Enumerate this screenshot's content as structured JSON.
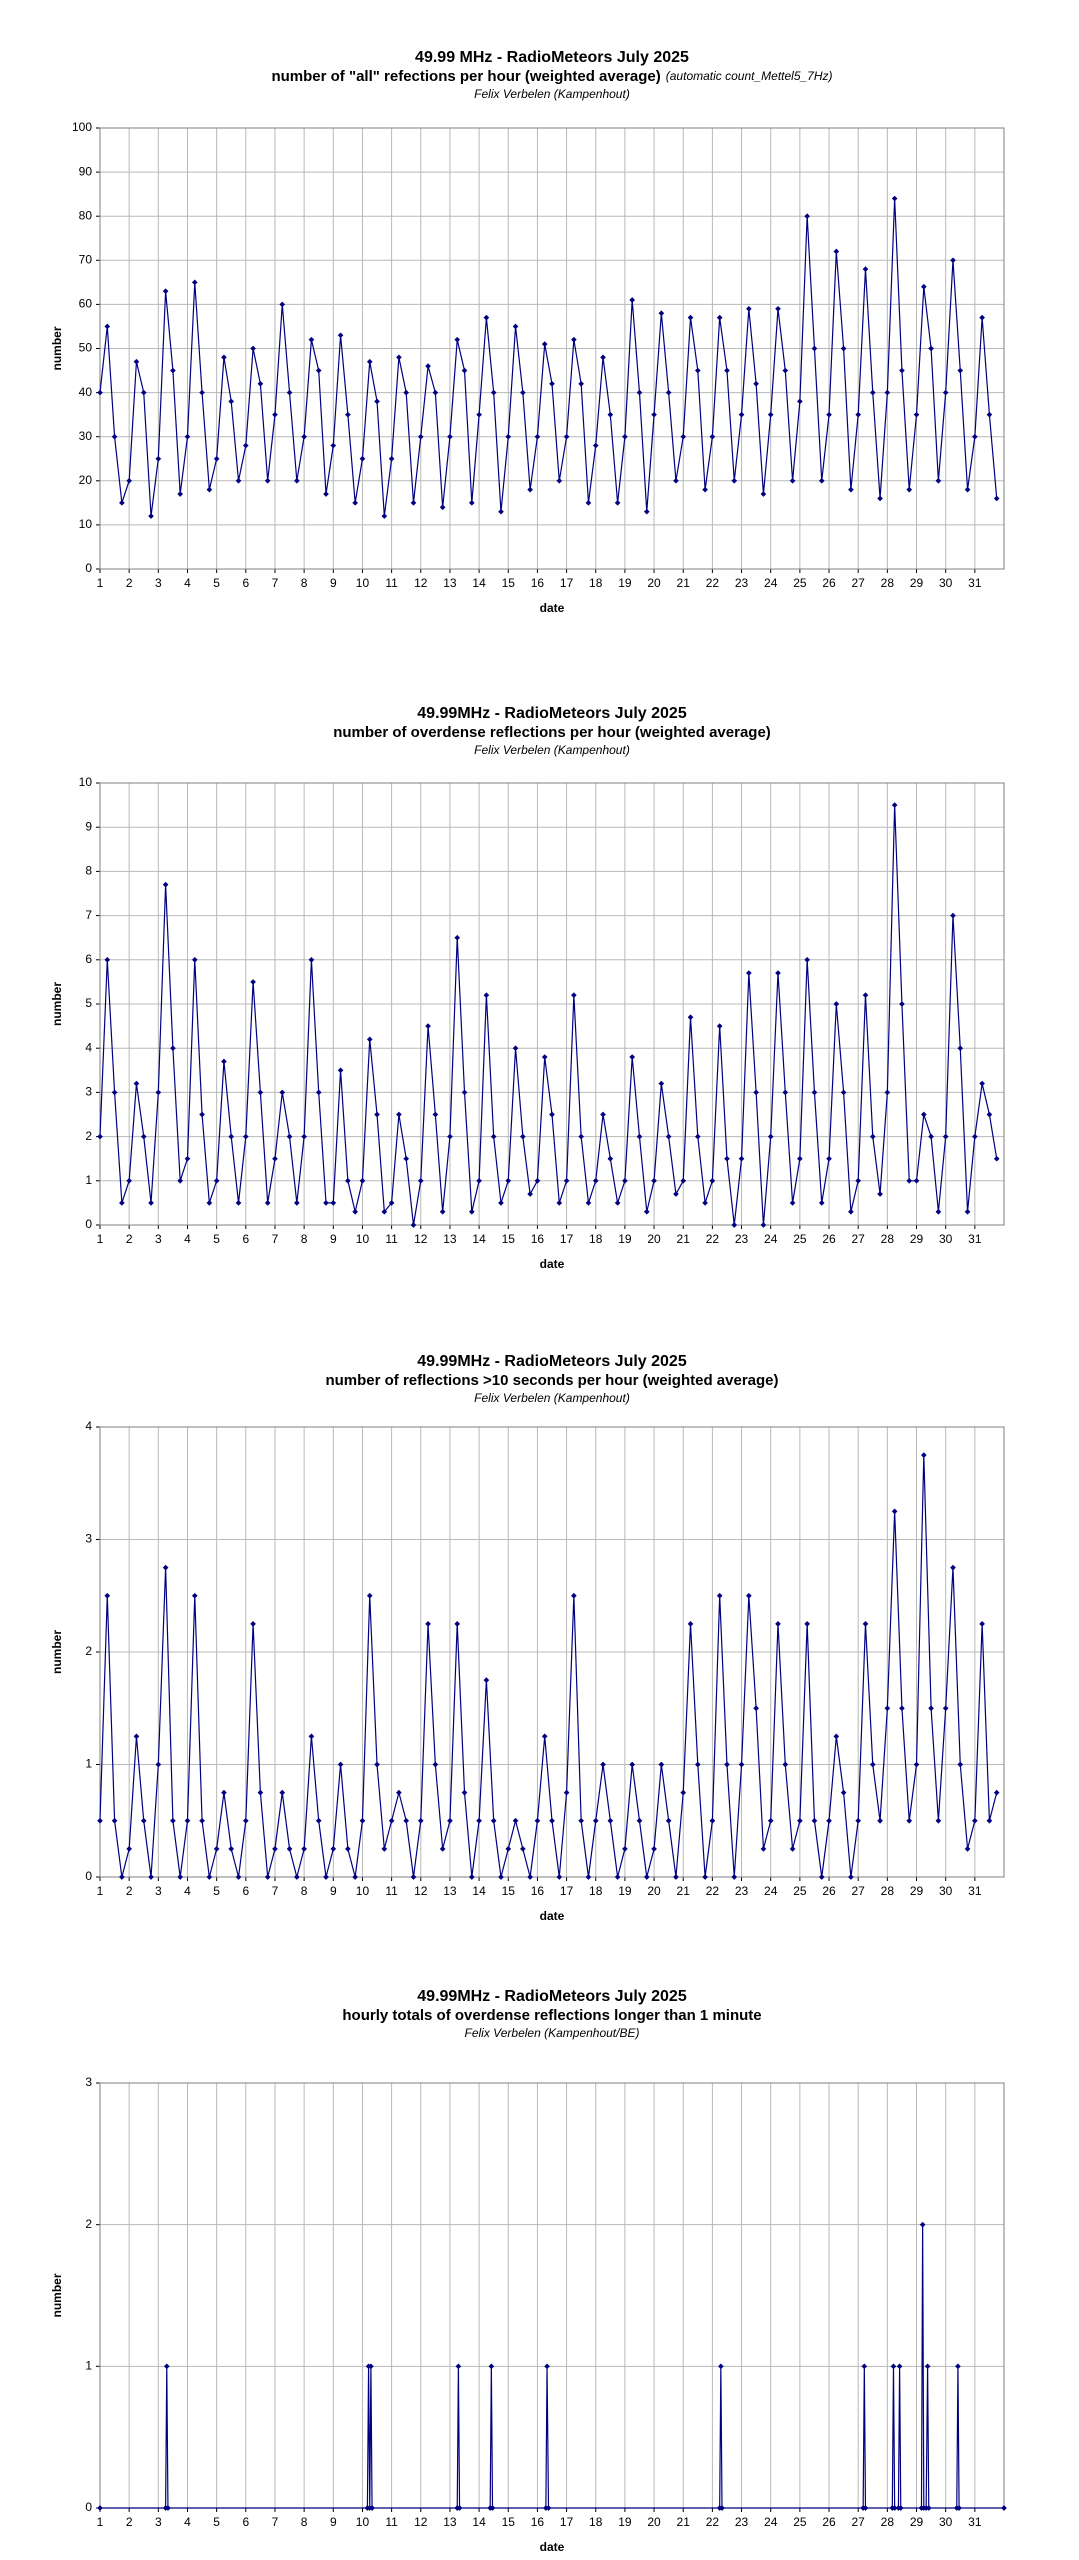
{
  "chart_data": [
    {
      "type": "line",
      "title": "49.99 MHz - RadioMeteors July 2025",
      "subtitle": "number of \"all\" refections per hour (weighted average)",
      "subtitle_note": "(automatic count_Mettel5_7Hz)",
      "credit": "Felix Verbelen (Kampenhout)",
      "x_label": "date",
      "y_label": "number",
      "xlim": [
        1,
        32
      ],
      "xticks": [
        1,
        2,
        3,
        4,
        5,
        6,
        7,
        8,
        9,
        10,
        11,
        12,
        13,
        14,
        15,
        16,
        17,
        18,
        19,
        20,
        21,
        22,
        23,
        24,
        25,
        26,
        27,
        28,
        29,
        30,
        31
      ],
      "ylim": [
        0,
        100
      ],
      "yticks": [
        0,
        10,
        20,
        30,
        40,
        50,
        60,
        70,
        80,
        90,
        100
      ],
      "grid": true,
      "x": [
        1,
        1.25,
        1.5,
        1.75,
        2,
        2.25,
        2.5,
        2.75,
        3,
        3.25,
        3.5,
        3.75,
        4,
        4.25,
        4.5,
        4.75,
        5,
        5.25,
        5.5,
        5.75,
        6,
        6.25,
        6.5,
        6.75,
        7,
        7.25,
        7.5,
        7.75,
        8,
        8.25,
        8.5,
        8.75,
        9,
        9.25,
        9.5,
        9.75,
        10,
        10.25,
        10.5,
        10.75,
        11,
        11.25,
        11.5,
        11.75,
        12,
        12.25,
        12.5,
        12.75,
        13,
        13.25,
        13.5,
        13.75,
        14,
        14.25,
        14.5,
        14.75,
        15,
        15.25,
        15.5,
        15.75,
        16,
        16.25,
        16.5,
        16.75,
        17,
        17.25,
        17.5,
        17.75,
        18,
        18.25,
        18.5,
        18.75,
        19,
        19.25,
        19.5,
        19.75,
        20,
        20.25,
        20.5,
        20.75,
        21,
        21.25,
        21.5,
        21.75,
        22,
        22.25,
        22.5,
        22.75,
        23,
        23.25,
        23.5,
        23.75,
        24,
        24.25,
        24.5,
        24.75,
        25,
        25.25,
        25.5,
        25.75,
        26,
        26.25,
        26.5,
        26.75,
        27,
        27.25,
        27.5,
        27.75,
        28,
        28.25,
        28.5,
        28.75,
        29,
        29.25,
        29.5,
        29.75,
        30,
        30.25,
        30.5,
        30.75,
        31,
        31.25,
        31.5,
        31.75
      ],
      "series": [
        {
          "color": "#000080",
          "values": [
            40,
            55,
            30,
            15,
            20,
            47,
            40,
            12,
            25,
            63,
            45,
            17,
            30,
            65,
            40,
            18,
            25,
            48,
            38,
            20,
            28,
            50,
            42,
            20,
            35,
            60,
            40,
            20,
            30,
            52,
            45,
            17,
            28,
            53,
            35,
            15,
            25,
            47,
            38,
            12,
            25,
            48,
            40,
            15,
            30,
            46,
            40,
            14,
            30,
            52,
            45,
            15,
            35,
            57,
            40,
            13,
            30,
            55,
            40,
            18,
            30,
            51,
            42,
            20,
            30,
            52,
            42,
            15,
            28,
            48,
            35,
            15,
            30,
            61,
            40,
            13,
            35,
            58,
            40,
            20,
            30,
            57,
            45,
            18,
            30,
            57,
            45,
            20,
            35,
            59,
            42,
            17,
            35,
            59,
            45,
            20,
            38,
            80,
            50,
            20,
            35,
            72,
            50,
            18,
            35,
            68,
            40,
            16,
            40,
            84,
            45,
            18,
            35,
            64,
            50,
            20,
            40,
            70,
            45,
            18,
            30,
            57,
            35,
            16
          ]
        }
      ]
    },
    {
      "type": "line",
      "title": "49.99MHz - RadioMeteors July 2025",
      "subtitle": "number of overdense reflections per hour (weighted average)",
      "credit": "Felix Verbelen (Kampenhout)",
      "x_label": "date",
      "y_label": "number",
      "xlim": [
        1,
        32
      ],
      "xticks": [
        1,
        2,
        3,
        4,
        5,
        6,
        7,
        8,
        9,
        10,
        11,
        12,
        13,
        14,
        15,
        16,
        17,
        18,
        19,
        20,
        21,
        22,
        23,
        24,
        25,
        26,
        27,
        28,
        29,
        30,
        31
      ],
      "ylim": [
        0,
        10
      ],
      "yticks": [
        0,
        1,
        2,
        3,
        4,
        5,
        6,
        7,
        8,
        9,
        10
      ],
      "grid": true,
      "x": [
        1,
        1.25,
        1.5,
        1.75,
        2,
        2.25,
        2.5,
        2.75,
        3,
        3.25,
        3.5,
        3.75,
        4,
        4.25,
        4.5,
        4.75,
        5,
        5.25,
        5.5,
        5.75,
        6,
        6.25,
        6.5,
        6.75,
        7,
        7.25,
        7.5,
        7.75,
        8,
        8.25,
        8.5,
        8.75,
        9,
        9.25,
        9.5,
        9.75,
        10,
        10.25,
        10.5,
        10.75,
        11,
        11.25,
        11.5,
        11.75,
        12,
        12.25,
        12.5,
        12.75,
        13,
        13.25,
        13.5,
        13.75,
        14,
        14.25,
        14.5,
        14.75,
        15,
        15.25,
        15.5,
        15.75,
        16,
        16.25,
        16.5,
        16.75,
        17,
        17.25,
        17.5,
        17.75,
        18,
        18.25,
        18.5,
        18.75,
        19,
        19.25,
        19.5,
        19.75,
        20,
        20.25,
        20.5,
        20.75,
        21,
        21.25,
        21.5,
        21.75,
        22,
        22.25,
        22.5,
        22.75,
        23,
        23.25,
        23.5,
        23.75,
        24,
        24.25,
        24.5,
        24.75,
        25,
        25.25,
        25.5,
        25.75,
        26,
        26.25,
        26.5,
        26.75,
        27,
        27.25,
        27.5,
        27.75,
        28,
        28.25,
        28.5,
        28.75,
        29,
        29.25,
        29.5,
        29.75,
        30,
        30.25,
        30.5,
        30.75,
        31,
        31.25,
        31.5,
        31.75
      ],
      "series": [
        {
          "color": "#000080",
          "values": [
            2,
            6,
            3,
            0.5,
            1,
            3.2,
            2,
            0.5,
            3,
            7.7,
            4,
            1,
            1.5,
            6,
            2.5,
            0.5,
            1,
            3.7,
            2,
            0.5,
            2,
            5.5,
            3,
            0.5,
            1.5,
            3,
            2,
            0.5,
            2,
            6,
            3,
            0.5,
            0.5,
            3.5,
            1,
            0.3,
            1,
            4.2,
            2.5,
            0.3,
            0.5,
            2.5,
            1.5,
            0,
            1,
            4.5,
            2.5,
            0.3,
            2,
            6.5,
            3,
            0.3,
            1,
            5.2,
            2,
            0.5,
            1,
            4,
            2,
            0.7,
            1,
            3.8,
            2.5,
            0.5,
            1,
            5.2,
            2,
            0.5,
            1,
            2.5,
            1.5,
            0.5,
            1,
            3.8,
            2,
            0.3,
            1,
            3.2,
            2,
            0.7,
            1,
            4.7,
            2,
            0.5,
            1,
            4.5,
            1.5,
            0,
            1.5,
            5.7,
            3,
            0,
            2,
            5.7,
            3,
            0.5,
            1.5,
            6,
            3,
            0.5,
            1.5,
            5,
            3,
            0.3,
            1,
            5.2,
            2,
            0.7,
            3,
            9.5,
            5,
            1,
            1,
            2.5,
            2,
            0.3,
            2,
            7,
            4,
            0.3,
            2,
            3.2,
            2.5,
            1.5
          ]
        }
      ]
    },
    {
      "type": "line",
      "title": "49.99MHz - RadioMeteors July 2025",
      "subtitle": "number of reflections >10 seconds per hour (weighted average)",
      "credit": "Felix Verbelen (Kampenhout)",
      "x_label": "date",
      "y_label": "number",
      "xlim": [
        1,
        32
      ],
      "xticks": [
        1,
        2,
        3,
        4,
        5,
        6,
        7,
        8,
        9,
        10,
        11,
        12,
        13,
        14,
        15,
        16,
        17,
        18,
        19,
        20,
        21,
        22,
        23,
        24,
        25,
        26,
        27,
        28,
        29,
        30,
        31
      ],
      "ylim": [
        0,
        4
      ],
      "yticks": [
        0,
        1,
        2,
        3,
        4
      ],
      "grid": true,
      "x": [
        1,
        1.25,
        1.5,
        1.75,
        2,
        2.25,
        2.5,
        2.75,
        3,
        3.25,
        3.5,
        3.75,
        4,
        4.25,
        4.5,
        4.75,
        5,
        5.25,
        5.5,
        5.75,
        6,
        6.25,
        6.5,
        6.75,
        7,
        7.25,
        7.5,
        7.75,
        8,
        8.25,
        8.5,
        8.75,
        9,
        9.25,
        9.5,
        9.75,
        10,
        10.25,
        10.5,
        10.75,
        11,
        11.25,
        11.5,
        11.75,
        12,
        12.25,
        12.5,
        12.75,
        13,
        13.25,
        13.5,
        13.75,
        14,
        14.25,
        14.5,
        14.75,
        15,
        15.25,
        15.5,
        15.75,
        16,
        16.25,
        16.5,
        16.75,
        17,
        17.25,
        17.5,
        17.75,
        18,
        18.25,
        18.5,
        18.75,
        19,
        19.25,
        19.5,
        19.75,
        20,
        20.25,
        20.5,
        20.75,
        21,
        21.25,
        21.5,
        21.75,
        22,
        22.25,
        22.5,
        22.75,
        23,
        23.25,
        23.5,
        23.75,
        24,
        24.25,
        24.5,
        24.75,
        25,
        25.25,
        25.5,
        25.75,
        26,
        26.25,
        26.5,
        26.75,
        27,
        27.25,
        27.5,
        27.75,
        28,
        28.25,
        28.5,
        28.75,
        29,
        29.25,
        29.5,
        29.75,
        30,
        30.25,
        30.5,
        30.75,
        31,
        31.25,
        31.5,
        31.75
      ],
      "series": [
        {
          "color": "#000080",
          "values": [
            0.5,
            2.5,
            0.5,
            0,
            0.25,
            1.25,
            0.5,
            0,
            1,
            2.75,
            0.5,
            0,
            0.5,
            2.5,
            0.5,
            0,
            0.25,
            0.75,
            0.25,
            0,
            0.5,
            2.25,
            0.75,
            0,
            0.25,
            0.75,
            0.25,
            0,
            0.25,
            1.25,
            0.5,
            0,
            0.25,
            1,
            0.25,
            0,
            0.5,
            2.5,
            1,
            0.25,
            0.5,
            0.75,
            0.5,
            0,
            0.5,
            2.25,
            1,
            0.25,
            0.5,
            2.25,
            0.75,
            0,
            0.5,
            1.75,
            0.5,
            0,
            0.25,
            0.5,
            0.25,
            0,
            0.5,
            1.25,
            0.5,
            0,
            0.75,
            2.5,
            0.5,
            0,
            0.5,
            1,
            0.5,
            0,
            0.25,
            1,
            0.5,
            0,
            0.25,
            1,
            0.5,
            0,
            0.75,
            2.25,
            1,
            0,
            0.5,
            2.5,
            1,
            0,
            1,
            2.5,
            1.5,
            0.25,
            0.5,
            2.25,
            1,
            0.25,
            0.5,
            2.25,
            0.5,
            0,
            0.5,
            1.25,
            0.75,
            0,
            0.5,
            2.25,
            1,
            0.5,
            1.5,
            3.25,
            1.5,
            0.5,
            1,
            3.75,
            1.5,
            0.5,
            1.5,
            2.75,
            1,
            0.25,
            0.5,
            2.25,
            0.5,
            0.75
          ]
        }
      ]
    },
    {
      "type": "line",
      "title": "49.99MHz - RadioMeteors July 2025",
      "subtitle": "hourly totals of overdense reflections longer than 1 minute",
      "credit": "Felix Verbelen (Kampenhout/BE)",
      "x_label": "date",
      "y_label": "number",
      "xlim": [
        1,
        32
      ],
      "xticks": [
        1,
        2,
        3,
        4,
        5,
        6,
        7,
        8,
        9,
        10,
        11,
        12,
        13,
        14,
        15,
        16,
        17,
        18,
        19,
        20,
        21,
        22,
        23,
        24,
        25,
        26,
        27,
        28,
        29,
        30,
        31
      ],
      "ylim": [
        0,
        3
      ],
      "yticks": [
        0,
        1,
        2,
        3
      ],
      "grid": true,
      "x": [
        1,
        3.25,
        3.29,
        3.33,
        10.17,
        10.21,
        10.25,
        10.29,
        10.33,
        13.25,
        13.29,
        13.33,
        14.38,
        14.42,
        14.46,
        16.29,
        16.33,
        16.38,
        22.25,
        22.29,
        22.33,
        27.17,
        27.21,
        27.25,
        28.17,
        28.21,
        28.25,
        28.38,
        28.42,
        28.46,
        29.17,
        29.21,
        29.25,
        29.33,
        29.38,
        29.42,
        30.38,
        30.42,
        30.46,
        32
      ],
      "series": [
        {
          "color": "#000080",
          "values": [
            0,
            0,
            1,
            0,
            0,
            1,
            0,
            1,
            0,
            0,
            1,
            0,
            0,
            1,
            0,
            0,
            1,
            0,
            0,
            1,
            0,
            0,
            1,
            0,
            0,
            1,
            0,
            0,
            1,
            0,
            0,
            2,
            0,
            0,
            1,
            0,
            0,
            1,
            0,
            0
          ]
        }
      ]
    }
  ]
}
